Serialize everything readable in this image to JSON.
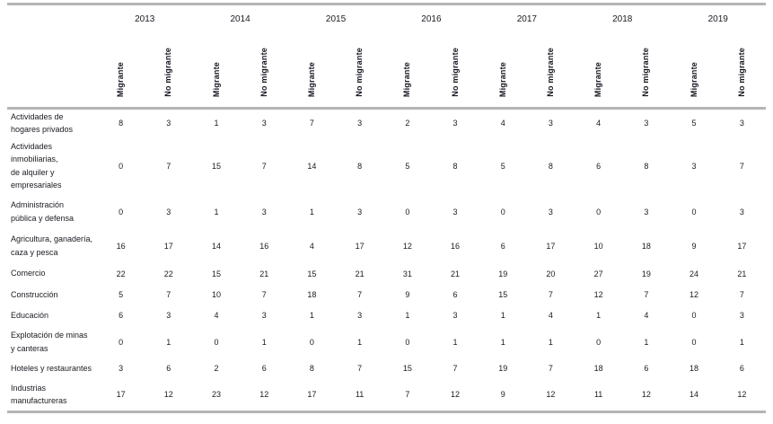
{
  "colors": {
    "rule_gray": "#b5b5b5",
    "text": "#1a1a22",
    "background": "#ffffff"
  },
  "table": {
    "years": [
      "2013",
      "2014",
      "2015",
      "2016",
      "2017",
      "2018",
      "2019"
    ],
    "subheaders": {
      "migrant": "Migrante",
      "non_migrant": "No migrante"
    },
    "rows": [
      {
        "label": "Actividades de\nhogares privados",
        "values": [
          8,
          3,
          1,
          3,
          7,
          3,
          2,
          3,
          4,
          3,
          4,
          3,
          5,
          3
        ]
      },
      {
        "label": "Actividades\ninmobiliarias,\nde alquiler y\nempresariales",
        "values": [
          0,
          7,
          15,
          7,
          14,
          8,
          5,
          8,
          5,
          8,
          6,
          8,
          3,
          7
        ]
      },
      {
        "label": "Administración\npública y defensa",
        "values": [
          0,
          3,
          1,
          3,
          1,
          3,
          0,
          3,
          0,
          3,
          0,
          3,
          0,
          3
        ]
      },
      {
        "label": "Agricultura, ganadería,\ncaza y pesca",
        "values": [
          16,
          17,
          14,
          16,
          4,
          17,
          12,
          16,
          6,
          17,
          10,
          18,
          9,
          17
        ]
      },
      {
        "label": "Comercio",
        "values": [
          22,
          22,
          15,
          21,
          15,
          21,
          31,
          21,
          19,
          20,
          27,
          19,
          24,
          21
        ]
      },
      {
        "label": "Construcción",
        "values": [
          5,
          7,
          10,
          7,
          18,
          7,
          9,
          6,
          15,
          7,
          12,
          7,
          12,
          7
        ]
      },
      {
        "label": "Educación",
        "values": [
          6,
          3,
          4,
          3,
          1,
          3,
          1,
          3,
          1,
          4,
          1,
          4,
          0,
          3
        ]
      },
      {
        "label": "Explotación de minas\ny canteras",
        "values": [
          0,
          1,
          0,
          1,
          0,
          1,
          0,
          1,
          1,
          1,
          0,
          1,
          0,
          1
        ]
      },
      {
        "label": "Hoteles y restaurantes",
        "values": [
          3,
          6,
          2,
          6,
          8,
          7,
          15,
          7,
          19,
          7,
          18,
          6,
          18,
          6
        ]
      },
      {
        "label": "Industrias\nmanufactureras",
        "values": [
          17,
          12,
          23,
          12,
          17,
          11,
          7,
          12,
          9,
          12,
          11,
          12,
          14,
          12
        ]
      }
    ]
  }
}
